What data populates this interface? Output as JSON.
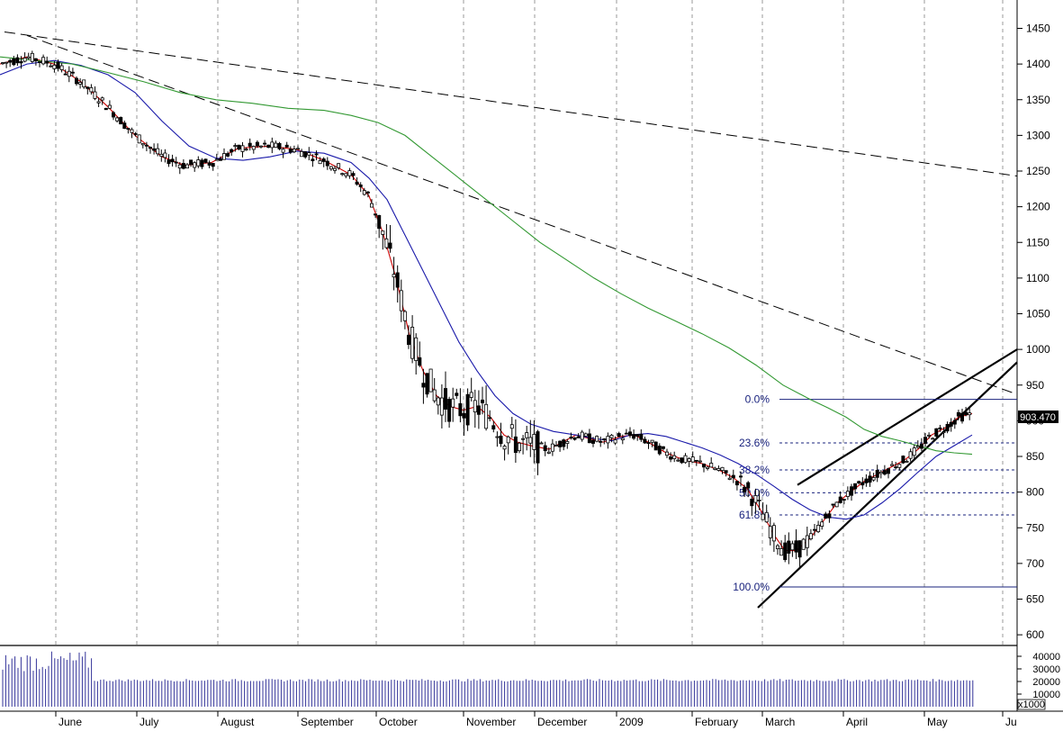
{
  "chart_data": {
    "type": "candlestick",
    "price_panel": {
      "ylim": [
        590,
        1475
      ],
      "y_ticks": [
        600,
        650,
        700,
        750,
        800,
        850,
        900,
        950,
        1000,
        1050,
        1100,
        1150,
        1200,
        1250,
        1300,
        1350,
        1400,
        1450
      ],
      "last_price_label": "903.470",
      "last_price": 903.47
    },
    "x_axis": {
      "labels": [
        "June",
        "July",
        "August",
        "September",
        "October",
        "November",
        "December",
        "2009",
        "February",
        "March",
        "April",
        "May",
        "Ju"
      ]
    },
    "volume_panel": {
      "ylim": [
        0,
        50000
      ],
      "y_ticks_labels": [
        "40000",
        "30000",
        "20000",
        "10000"
      ],
      "y_ticks_values": [
        40000,
        30000,
        20000,
        10000
      ],
      "multiplier_label": "x1000"
    },
    "fibonacci": [
      {
        "label": "0.0%",
        "value": 930
      },
      {
        "label": "23.6%",
        "value": 869
      },
      {
        "label": "38.2%",
        "value": 831
      },
      {
        "label": "50.0%",
        "value": 799
      },
      {
        "label": "61.8%",
        "value": 768
      },
      {
        "label": "100.0%",
        "value": 667
      }
    ],
    "trendlines": [
      {
        "style": "dashed",
        "from": [
          5,
          1445
        ],
        "to": [
          1130,
          1243
        ]
      },
      {
        "style": "dashed",
        "from": [
          30,
          1440
        ],
        "to": [
          1130,
          937
        ]
      },
      {
        "style": "solid",
        "from": [
          842,
          638
        ],
        "to": [
          1130,
          982
        ]
      },
      {
        "style": "solid",
        "from": [
          886,
          810
        ],
        "to": [
          1130,
          1000
        ]
      }
    ],
    "moving_averages": [
      {
        "color": "#cc0000",
        "points": [
          [
            0,
            1400
          ],
          [
            30,
            1410
          ],
          [
            60,
            1400
          ],
          [
            90,
            1375
          ],
          [
            120,
            1340
          ],
          [
            150,
            1300
          ],
          [
            180,
            1270
          ],
          [
            205,
            1258
          ],
          [
            235,
            1262
          ],
          [
            265,
            1282
          ],
          [
            300,
            1285
          ],
          [
            330,
            1280
          ],
          [
            360,
            1265
          ],
          [
            390,
            1245
          ],
          [
            410,
            1215
          ],
          [
            425,
            1165
          ],
          [
            440,
            1100
          ],
          [
            455,
            1020
          ],
          [
            470,
            970
          ],
          [
            485,
            935
          ],
          [
            500,
            920
          ],
          [
            515,
            915
          ],
          [
            530,
            920
          ],
          [
            545,
            905
          ],
          [
            560,
            880
          ],
          [
            575,
            870
          ],
          [
            590,
            865
          ],
          [
            610,
            860
          ],
          [
            625,
            870
          ],
          [
            640,
            880
          ],
          [
            655,
            875
          ],
          [
            670,
            870
          ],
          [
            690,
            878
          ],
          [
            705,
            880
          ],
          [
            720,
            870
          ],
          [
            740,
            855
          ],
          [
            760,
            845
          ],
          [
            780,
            840
          ],
          [
            800,
            830
          ],
          [
            815,
            820
          ],
          [
            830,
            805
          ],
          [
            845,
            775
          ],
          [
            860,
            740
          ],
          [
            872,
            718
          ],
          [
            885,
            718
          ],
          [
            900,
            735
          ],
          [
            915,
            760
          ],
          [
            930,
            785
          ],
          [
            945,
            800
          ],
          [
            960,
            815
          ],
          [
            975,
            825
          ],
          [
            990,
            835
          ],
          [
            1005,
            845
          ],
          [
            1020,
            860
          ],
          [
            1035,
            880
          ],
          [
            1050,
            890
          ],
          [
            1065,
            905
          ],
          [
            1080,
            910
          ]
        ]
      },
      {
        "color": "#1a1aaa",
        "points": [
          [
            0,
            1385
          ],
          [
            30,
            1400
          ],
          [
            60,
            1405
          ],
          [
            90,
            1398
          ],
          [
            120,
            1385
          ],
          [
            150,
            1360
          ],
          [
            180,
            1320
          ],
          [
            210,
            1285
          ],
          [
            240,
            1268
          ],
          [
            270,
            1265
          ],
          [
            300,
            1270
          ],
          [
            330,
            1278
          ],
          [
            360,
            1275
          ],
          [
            390,
            1262
          ],
          [
            410,
            1240
          ],
          [
            430,
            1210
          ],
          [
            450,
            1160
          ],
          [
            470,
            1110
          ],
          [
            490,
            1060
          ],
          [
            510,
            1010
          ],
          [
            530,
            970
          ],
          [
            550,
            935
          ],
          [
            570,
            910
          ],
          [
            590,
            895
          ],
          [
            615,
            885
          ],
          [
            640,
            880
          ],
          [
            660,
            875
          ],
          [
            680,
            872
          ],
          [
            700,
            880
          ],
          [
            720,
            882
          ],
          [
            740,
            878
          ],
          [
            760,
            870
          ],
          [
            780,
            862
          ],
          [
            800,
            852
          ],
          [
            820,
            840
          ],
          [
            840,
            825
          ],
          [
            860,
            808
          ],
          [
            880,
            790
          ],
          [
            900,
            775
          ],
          [
            920,
            765
          ],
          [
            940,
            762
          ],
          [
            960,
            768
          ],
          [
            980,
            785
          ],
          [
            1000,
            805
          ],
          [
            1020,
            828
          ],
          [
            1040,
            850
          ],
          [
            1060,
            865
          ],
          [
            1080,
            880
          ]
        ]
      },
      {
        "color": "#339933",
        "points": [
          [
            0,
            1410
          ],
          [
            40,
            1405
          ],
          [
            80,
            1400
          ],
          [
            120,
            1388
          ],
          [
            160,
            1375
          ],
          [
            200,
            1360
          ],
          [
            240,
            1350
          ],
          [
            280,
            1345
          ],
          [
            320,
            1338
          ],
          [
            360,
            1335
          ],
          [
            390,
            1328
          ],
          [
            420,
            1318
          ],
          [
            450,
            1300
          ],
          [
            480,
            1270
          ],
          [
            510,
            1240
          ],
          [
            540,
            1210
          ],
          [
            570,
            1180
          ],
          [
            600,
            1150
          ],
          [
            630,
            1125
          ],
          [
            660,
            1100
          ],
          [
            690,
            1078
          ],
          [
            720,
            1058
          ],
          [
            750,
            1040
          ],
          [
            780,
            1022
          ],
          [
            810,
            1002
          ],
          [
            840,
            978
          ],
          [
            870,
            950
          ],
          [
            900,
            930
          ],
          [
            920,
            918
          ],
          [
            940,
            905
          ],
          [
            960,
            888
          ],
          [
            980,
            878
          ],
          [
            1000,
            872
          ],
          [
            1020,
            865
          ],
          [
            1040,
            858
          ],
          [
            1060,
            855
          ],
          [
            1080,
            853
          ]
        ]
      }
    ]
  }
}
